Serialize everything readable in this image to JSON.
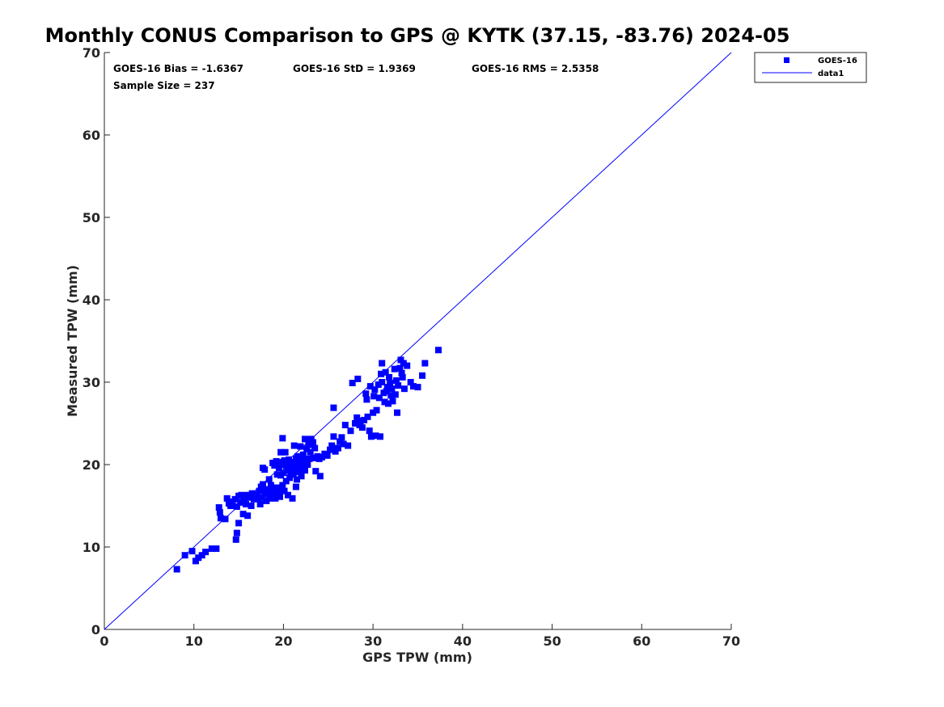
{
  "chart_data": {
    "type": "scatter",
    "title": "Monthly CONUS Comparison to GPS @ KYTK (37.15, -83.76) 2024-05",
    "xlabel": "GPS TPW (mm)",
    "ylabel": "Measured TPW (mm)",
    "xlim": [
      0,
      70
    ],
    "ylim": [
      0,
      70
    ],
    "xticks": [
      "0",
      "10",
      "20",
      "30",
      "40",
      "50",
      "60",
      "70"
    ],
    "yticks": [
      "0",
      "10",
      "20",
      "30",
      "40",
      "50",
      "60",
      "70"
    ],
    "grid": false,
    "legend_position": "outside-top-right",
    "stats": {
      "bias": "GOES-16 Bias = -1.6367",
      "std": "GOES-16 StD = 1.9369",
      "rms": "GOES-16 RMS = 2.5358",
      "sample": "Sample Size = 237"
    },
    "series": [
      {
        "name": "GOES-16",
        "kind": "scatter",
        "color": "#0000ff",
        "marker": "square",
        "points": [
          [
            8.1,
            7.3
          ],
          [
            9.0,
            9.0
          ],
          [
            9.8,
            9.5
          ],
          [
            10.2,
            8.3
          ],
          [
            10.5,
            8.7
          ],
          [
            10.9,
            9.0
          ],
          [
            11.3,
            9.4
          ],
          [
            12.0,
            9.8
          ],
          [
            12.5,
            9.8
          ],
          [
            12.8,
            14.8
          ],
          [
            12.9,
            14.2
          ],
          [
            13.0,
            13.5
          ],
          [
            13.5,
            13.4
          ],
          [
            13.7,
            15.9
          ],
          [
            13.9,
            15.3
          ],
          [
            14.1,
            15.0
          ],
          [
            14.3,
            15.5
          ],
          [
            14.6,
            15.8
          ],
          [
            14.8,
            14.9
          ],
          [
            14.7,
            10.9
          ],
          [
            14.8,
            11.7
          ],
          [
            15.0,
            12.9
          ],
          [
            15.0,
            16.2
          ],
          [
            15.2,
            15.4
          ],
          [
            15.3,
            16.3
          ],
          [
            15.5,
            14.0
          ],
          [
            15.6,
            15.6
          ],
          [
            15.8,
            15.2
          ],
          [
            16.0,
            13.8
          ],
          [
            16.0,
            16.3
          ],
          [
            16.2,
            16.0
          ],
          [
            16.4,
            15.0
          ],
          [
            16.5,
            16.5
          ],
          [
            16.7,
            15.8
          ],
          [
            16.8,
            16.2
          ],
          [
            17.0,
            16.4
          ],
          [
            17.2,
            15.9
          ],
          [
            17.3,
            16.8
          ],
          [
            17.4,
            15.2
          ],
          [
            17.5,
            17.3
          ],
          [
            17.6,
            16.0
          ],
          [
            17.7,
            17.6
          ],
          [
            17.7,
            19.6
          ],
          [
            17.9,
            19.4
          ],
          [
            18.0,
            16.6
          ],
          [
            18.1,
            15.6
          ],
          [
            18.2,
            17.0
          ],
          [
            18.3,
            16.4
          ],
          [
            18.4,
            18.2
          ],
          [
            18.5,
            15.9
          ],
          [
            18.6,
            17.5
          ],
          [
            18.7,
            16.9
          ],
          [
            18.8,
            20.2
          ],
          [
            18.9,
            16.3
          ],
          [
            19.0,
            19.9
          ],
          [
            19.1,
            15.9
          ],
          [
            19.2,
            17.2
          ],
          [
            19.2,
            20.4
          ],
          [
            19.3,
            18.8
          ],
          [
            19.4,
            16.6
          ],
          [
            19.5,
            19.6
          ],
          [
            19.6,
            16.1
          ],
          [
            19.6,
            20.0
          ],
          [
            19.7,
            18.7
          ],
          [
            19.7,
            21.5
          ],
          [
            19.8,
            17.1
          ],
          [
            19.8,
            20.3
          ],
          [
            19.9,
            17.5
          ],
          [
            19.9,
            23.2
          ],
          [
            20.0,
            19.0
          ],
          [
            20.1,
            20.5
          ],
          [
            20.1,
            16.8
          ],
          [
            20.2,
            21.5
          ],
          [
            20.3,
            19.8
          ],
          [
            20.3,
            18.0
          ],
          [
            20.4,
            20.1
          ],
          [
            20.5,
            19.3
          ],
          [
            20.5,
            16.3
          ],
          [
            20.6,
            20.6
          ],
          [
            20.7,
            18.4
          ],
          [
            20.7,
            19.9
          ],
          [
            20.8,
            19.0
          ],
          [
            20.9,
            20.3
          ],
          [
            21.0,
            19.6
          ],
          [
            21.0,
            15.9
          ],
          [
            21.1,
            18.8
          ],
          [
            21.2,
            20.2
          ],
          [
            21.2,
            22.3
          ],
          [
            21.3,
            19.5
          ],
          [
            21.4,
            17.3
          ],
          [
            21.4,
            20.7
          ],
          [
            21.5,
            18.2
          ],
          [
            21.6,
            19.7
          ],
          [
            21.6,
            21.0
          ],
          [
            21.7,
            20.4
          ],
          [
            21.8,
            19.1
          ],
          [
            21.9,
            22.2
          ],
          [
            22.0,
            18.6
          ],
          [
            22.0,
            20.0
          ],
          [
            22.1,
            19.5
          ],
          [
            22.2,
            21.2
          ],
          [
            22.3,
            20.6
          ],
          [
            22.4,
            19.3
          ],
          [
            22.4,
            23.1
          ],
          [
            22.6,
            21.9
          ],
          [
            22.7,
            20.0
          ],
          [
            22.8,
            22.4
          ],
          [
            22.9,
            20.7
          ],
          [
            23.0,
            21.5
          ],
          [
            23.1,
            23.1
          ],
          [
            23.3,
            22.7
          ],
          [
            23.4,
            20.8
          ],
          [
            23.5,
            22.0
          ],
          [
            23.6,
            19.2
          ],
          [
            23.8,
            21.0
          ],
          [
            24.0,
            20.7
          ],
          [
            24.1,
            18.6
          ],
          [
            24.3,
            20.9
          ],
          [
            24.6,
            21.3
          ],
          [
            24.9,
            21.1
          ],
          [
            25.2,
            21.8
          ],
          [
            25.4,
            22.3
          ],
          [
            25.6,
            26.9
          ],
          [
            25.6,
            23.4
          ],
          [
            25.8,
            21.6
          ],
          [
            26.1,
            22.0
          ],
          [
            26.3,
            22.8
          ],
          [
            26.5,
            23.3
          ],
          [
            26.7,
            22.5
          ],
          [
            26.9,
            24.8
          ],
          [
            27.2,
            22.3
          ],
          [
            27.5,
            24.1
          ],
          [
            27.7,
            29.9
          ],
          [
            28.0,
            25.0
          ],
          [
            28.2,
            25.7
          ],
          [
            28.3,
            30.4
          ],
          [
            28.5,
            24.8
          ],
          [
            28.6,
            25.3
          ],
          [
            28.8,
            24.5
          ],
          [
            29.0,
            25.4
          ],
          [
            29.2,
            28.6
          ],
          [
            29.3,
            27.9
          ],
          [
            29.4,
            25.8
          ],
          [
            29.6,
            24.1
          ],
          [
            29.7,
            29.5
          ],
          [
            29.8,
            23.4
          ],
          [
            30.0,
            26.3
          ],
          [
            30.1,
            28.3
          ],
          [
            30.2,
            29.1
          ],
          [
            30.3,
            23.5
          ],
          [
            30.4,
            26.6
          ],
          [
            30.6,
            29.7
          ],
          [
            30.7,
            28.1
          ],
          [
            30.8,
            23.4
          ],
          [
            30.9,
            31.0
          ],
          [
            31.0,
            32.3
          ],
          [
            31.0,
            30.0
          ],
          [
            31.2,
            28.7
          ],
          [
            31.3,
            27.6
          ],
          [
            31.4,
            31.2
          ],
          [
            31.5,
            28.9
          ],
          [
            31.6,
            29.4
          ],
          [
            31.7,
            27.4
          ],
          [
            31.8,
            30.6
          ],
          [
            31.9,
            29.9
          ],
          [
            32.0,
            28.4
          ],
          [
            32.1,
            29.2
          ],
          [
            32.2,
            27.7
          ],
          [
            32.4,
            31.6
          ],
          [
            32.5,
            28.5
          ],
          [
            32.6,
            30.2
          ],
          [
            32.7,
            26.3
          ],
          [
            32.8,
            29.6
          ],
          [
            33.0,
            31.7
          ],
          [
            33.1,
            32.7
          ],
          [
            33.2,
            31.1
          ],
          [
            33.3,
            30.6
          ],
          [
            33.4,
            32.3
          ],
          [
            33.5,
            29.2
          ],
          [
            33.8,
            32.0
          ],
          [
            34.2,
            30.0
          ],
          [
            34.5,
            29.5
          ],
          [
            35.0,
            29.4
          ],
          [
            35.5,
            30.8
          ],
          [
            35.8,
            32.3
          ],
          [
            37.3,
            33.9
          ]
        ]
      },
      {
        "name": "data1",
        "kind": "line",
        "color": "#0000ff",
        "points": [
          [
            0,
            0
          ],
          [
            70,
            70
          ]
        ]
      }
    ]
  }
}
